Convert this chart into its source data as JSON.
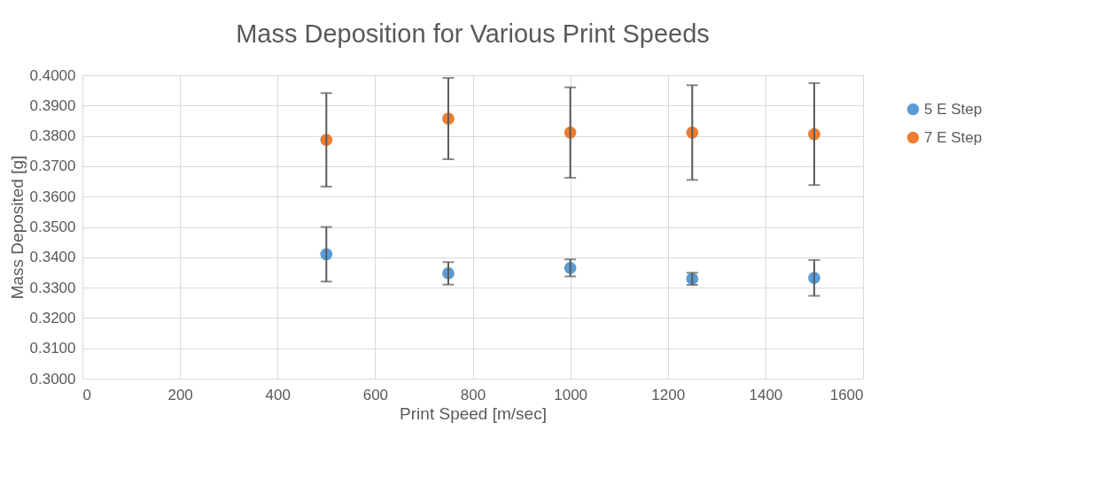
{
  "chart_data": {
    "type": "scatter",
    "title": "Mass Deposition for Various Print Speeds",
    "xlabel": "Print Speed [m/sec]",
    "ylabel": "Mass Deposited [g]",
    "x": [
      500,
      750,
      1000,
      1250,
      1500
    ],
    "series": [
      {
        "name": "5 E Step",
        "color": "#5b9bd5",
        "values": [
          0.341,
          0.3347,
          0.3365,
          0.3329,
          0.3332
        ],
        "errors": [
          0.009,
          0.0037,
          0.0028,
          0.002,
          0.0059
        ]
      },
      {
        "name": "7 E Step",
        "color": "#ed7d31",
        "values": [
          0.3787,
          0.3857,
          0.3811,
          0.3811,
          0.3806
        ],
        "errors": [
          0.0154,
          0.0134,
          0.0149,
          0.0156,
          0.0168
        ]
      }
    ],
    "xlim": [
      0,
      1600
    ],
    "xticks": [
      0,
      200,
      400,
      600,
      800,
      1000,
      1200,
      1400,
      1600
    ],
    "ylim": [
      0.3,
      0.4
    ],
    "yticks": [
      {
        "value": 0.3,
        "label": "0.3000"
      },
      {
        "value": 0.31,
        "label": "0.3100"
      },
      {
        "value": 0.32,
        "label": "0.3200"
      },
      {
        "value": 0.33,
        "label": "0.3300"
      },
      {
        "value": 0.34,
        "label": "0.3400"
      },
      {
        "value": 0.35,
        "label": "0.3500"
      },
      {
        "value": 0.36,
        "label": "0.3600"
      },
      {
        "value": 0.37,
        "label": "0.3700"
      },
      {
        "value": 0.38,
        "label": "0.3800"
      },
      {
        "value": 0.39,
        "label": "0.3900"
      },
      {
        "value": 0.4,
        "label": "0.4000"
      }
    ],
    "grid": true,
    "legend": "right",
    "marker": "circle"
  }
}
